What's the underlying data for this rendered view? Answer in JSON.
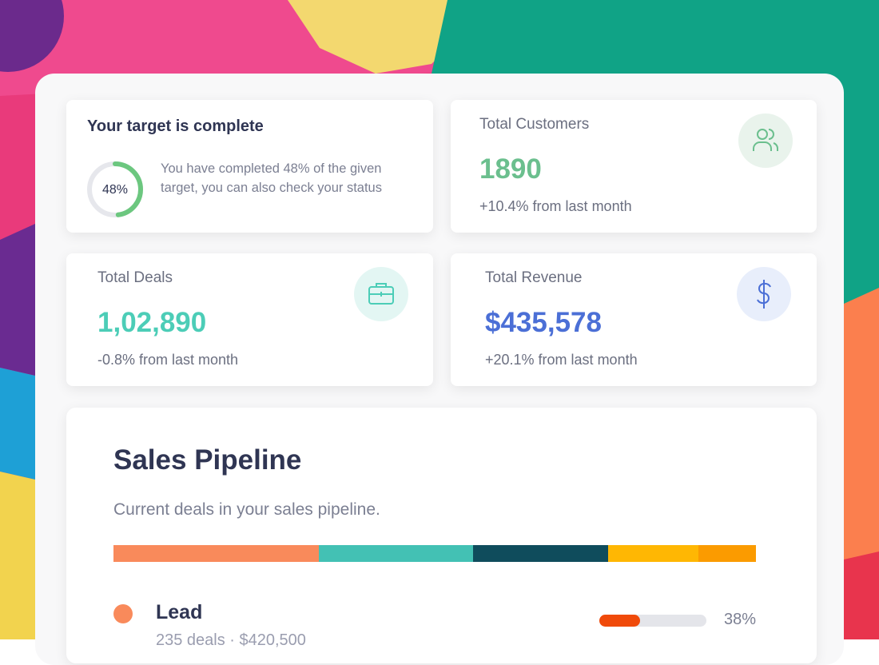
{
  "target_card": {
    "title": "Your target is complete",
    "progress": {
      "value": 48,
      "label": "48%"
    },
    "progress_color": "#6cc77f",
    "description": "You have completed 48% of the given target, you can also check your status"
  },
  "stats": [
    {
      "title": "Total Customers",
      "value": "1890",
      "change": "+10.4% from last month",
      "color": "#6bbf8e"
    },
    {
      "title": "Total Deals",
      "value": "1,02,890",
      "change": "-0.8% from last month",
      "color": "#4ccdb7"
    },
    {
      "title": "Total Revenue",
      "value": "$435,578",
      "change": "+20.1% from last month",
      "color": "#4b6fd6"
    }
  ],
  "pipeline": {
    "title": "Sales Pipeline",
    "subtitle": "Current deals in your sales pipeline.",
    "segments": [
      {
        "color": "#f98a5b",
        "value": 32
      },
      {
        "color": "#43c1b4",
        "value": 24
      },
      {
        "color": "#0f4c5c",
        "value": 21
      },
      {
        "color": "#ffb703",
        "value": 14
      },
      {
        "color": "#fb9b00",
        "value": 9
      }
    ],
    "stages": [
      {
        "name": "Lead",
        "color": "#f98a5b",
        "details": "235 deals · $420,500",
        "progress": {
          "value": 38,
          "label": "38%"
        },
        "bar_color": "#f04a0a"
      }
    ]
  }
}
